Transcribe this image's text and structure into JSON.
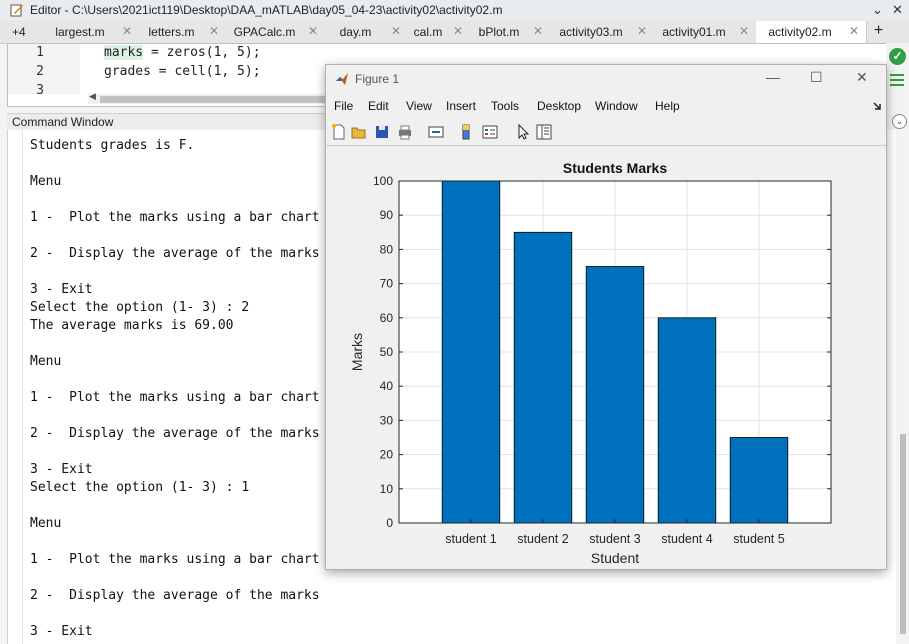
{
  "editor": {
    "title": "Editor - C:\\Users\\2021ict119\\Desktop\\DAA_mATLAB\\day05_04-23\\activity02\\activity02.m",
    "more_tabs": "+4",
    "tabs": [
      {
        "label": "largest.m"
      },
      {
        "label": "letters.m"
      },
      {
        "label": "GPACalc.m"
      },
      {
        "label": "day.m"
      },
      {
        "label": "cal.m"
      },
      {
        "label": "bPlot.m"
      },
      {
        "label": "activity03.m"
      },
      {
        "label": "activity01.m"
      },
      {
        "label": "activity02.m"
      }
    ],
    "add_tab": "+",
    "lines": [
      {
        "num": "1",
        "pre": "",
        "hl": "marks",
        "post": " = zeros(1, 5);"
      },
      {
        "num": "2",
        "pre": "",
        "hl": "",
        "post": "grades = cell(1, 5);"
      },
      {
        "num": "3",
        "pre": "",
        "hl": "",
        "post": ""
      }
    ]
  },
  "command_window": {
    "title": "Command Window",
    "lines": [
      "Students grades is F.",
      "",
      "Menu",
      "",
      "1 -  Plot the marks using a bar chart",
      "",
      "2 -  Display the average of the marks",
      "",
      "3 - Exit",
      "Select the option (1- 3) : 2",
      "The average marks is 69.00",
      "",
      "Menu",
      "",
      "1 -  Plot the marks using a bar chart",
      "",
      "2 -  Display the average of the marks",
      "",
      "3 - Exit",
      "Select the option (1- 3) : 1",
      "",
      "Menu",
      "",
      "1 -  Plot the marks using a bar chart",
      "",
      "2 -  Display the average of the marks",
      "",
      "3 - Exit"
    ]
  },
  "figure": {
    "title": "Figure 1",
    "menu": [
      "File",
      "Edit",
      "View",
      "Insert",
      "Tools",
      "Desktop",
      "Window",
      "Help"
    ]
  },
  "colors": {
    "bar": "#0072bd",
    "ok": "#2f9e44"
  },
  "chart_data": {
    "type": "bar",
    "title": "Students Marks",
    "xlabel": "Student",
    "ylabel": "Marks",
    "categories": [
      "student 1",
      "student 2",
      "student 3",
      "student 4",
      "student 5"
    ],
    "values": [
      100,
      85,
      75,
      60,
      25
    ],
    "ylim": [
      0,
      100
    ],
    "yticks": [
      0,
      10,
      20,
      30,
      40,
      50,
      60,
      70,
      80,
      90,
      100
    ],
    "grid": true
  }
}
